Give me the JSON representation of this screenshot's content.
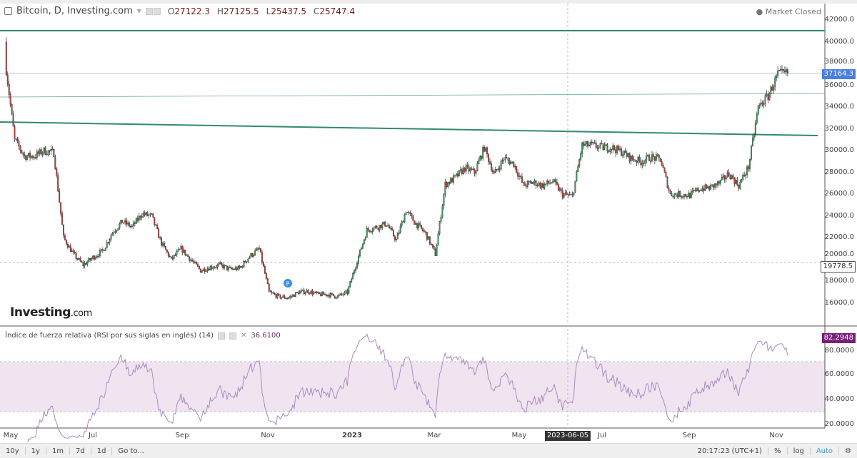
{
  "header": {
    "title": "Bitcoin, D, Investing.com",
    "open_label": "O",
    "open": "27122.3",
    "high_label": "H",
    "high": "27125.5",
    "low_label": "L",
    "low": "25437.5",
    "close_label": "C",
    "close": "25747.4"
  },
  "status": "Market Closed",
  "logo": {
    "main": "Investing",
    "suffix": ".com"
  },
  "rsi": {
    "title": "Índice de fuerza relativa (RSI por sus siglas en inglés) (14)",
    "value": "36.6100",
    "last_tag": "82.2948",
    "y_ticks": [
      "80.0000",
      "60.0000",
      "40.0000",
      "20.0000"
    ],
    "bands": [
      70,
      30
    ]
  },
  "price_axis": {
    "ticks": [
      "42000.0",
      "40000.0",
      "38000.0",
      "36000.0",
      "34000.0",
      "32000.0",
      "30000.0",
      "28000.0",
      "26000.0",
      "24000.0",
      "22000.0",
      "20000.0",
      "18000.0",
      "16000.0"
    ],
    "last_price": "37164.3",
    "crosshair_price": "19778.5"
  },
  "time_axis": {
    "ticks": [
      "May",
      "Jul",
      "Sep",
      "Nov",
      "2023",
      "Mar",
      "May",
      "Jul",
      "Sep",
      "Nov"
    ],
    "crosshair_date": "2023-06-05"
  },
  "toolbar": {
    "ranges": [
      "10y",
      "1y",
      "1m",
      "7d",
      "1d",
      "Go to..."
    ],
    "clock": "20:17:23 (UTC+1)",
    "percent": "%",
    "log": "log",
    "auto": "Auto"
  },
  "colors": {
    "up": "#3f9a5a",
    "down": "#b8403a",
    "trendline": "#2e8b6e",
    "rsi_line": "#a98bbd",
    "rsi_band": "#f1e4f1",
    "last_price_tag": "#4a7fe0",
    "rsi_tag": "#7a1f7a"
  },
  "chart_data": {
    "type": "candlestick",
    "note_series": "approximate weekly closes",
    "start_week": "2022-05-01",
    "weekly_close": [
      38500,
      31000,
      29500,
      29500,
      30000,
      29800,
      22000,
      20500,
      19500,
      20200,
      20800,
      22500,
      23500,
      23000,
      24200,
      24000,
      21500,
      20000,
      21000,
      20000,
      19000,
      19300,
      19500,
      19100,
      19200,
      20300,
      21000,
      17000,
      16600,
      16500,
      17000,
      17100,
      16800,
      16800,
      16600,
      17000,
      19900,
      22700,
      23000,
      23300,
      21800,
      24500,
      23300,
      22400,
      20500,
      26900,
      27500,
      28400,
      28000,
      30300,
      27800,
      29300,
      28800,
      26800,
      27100,
      26800,
      27200,
      26000,
      25800,
      30500,
      30500,
      30300,
      30300,
      29900,
      29300,
      29000,
      29400,
      29200,
      26000,
      26000,
      25900,
      26500,
      26600,
      27000,
      27900,
      26800,
      28500,
      34000,
      35000,
      37000,
      37100
    ],
    "ylim": [
      15000,
      43000
    ]
  }
}
